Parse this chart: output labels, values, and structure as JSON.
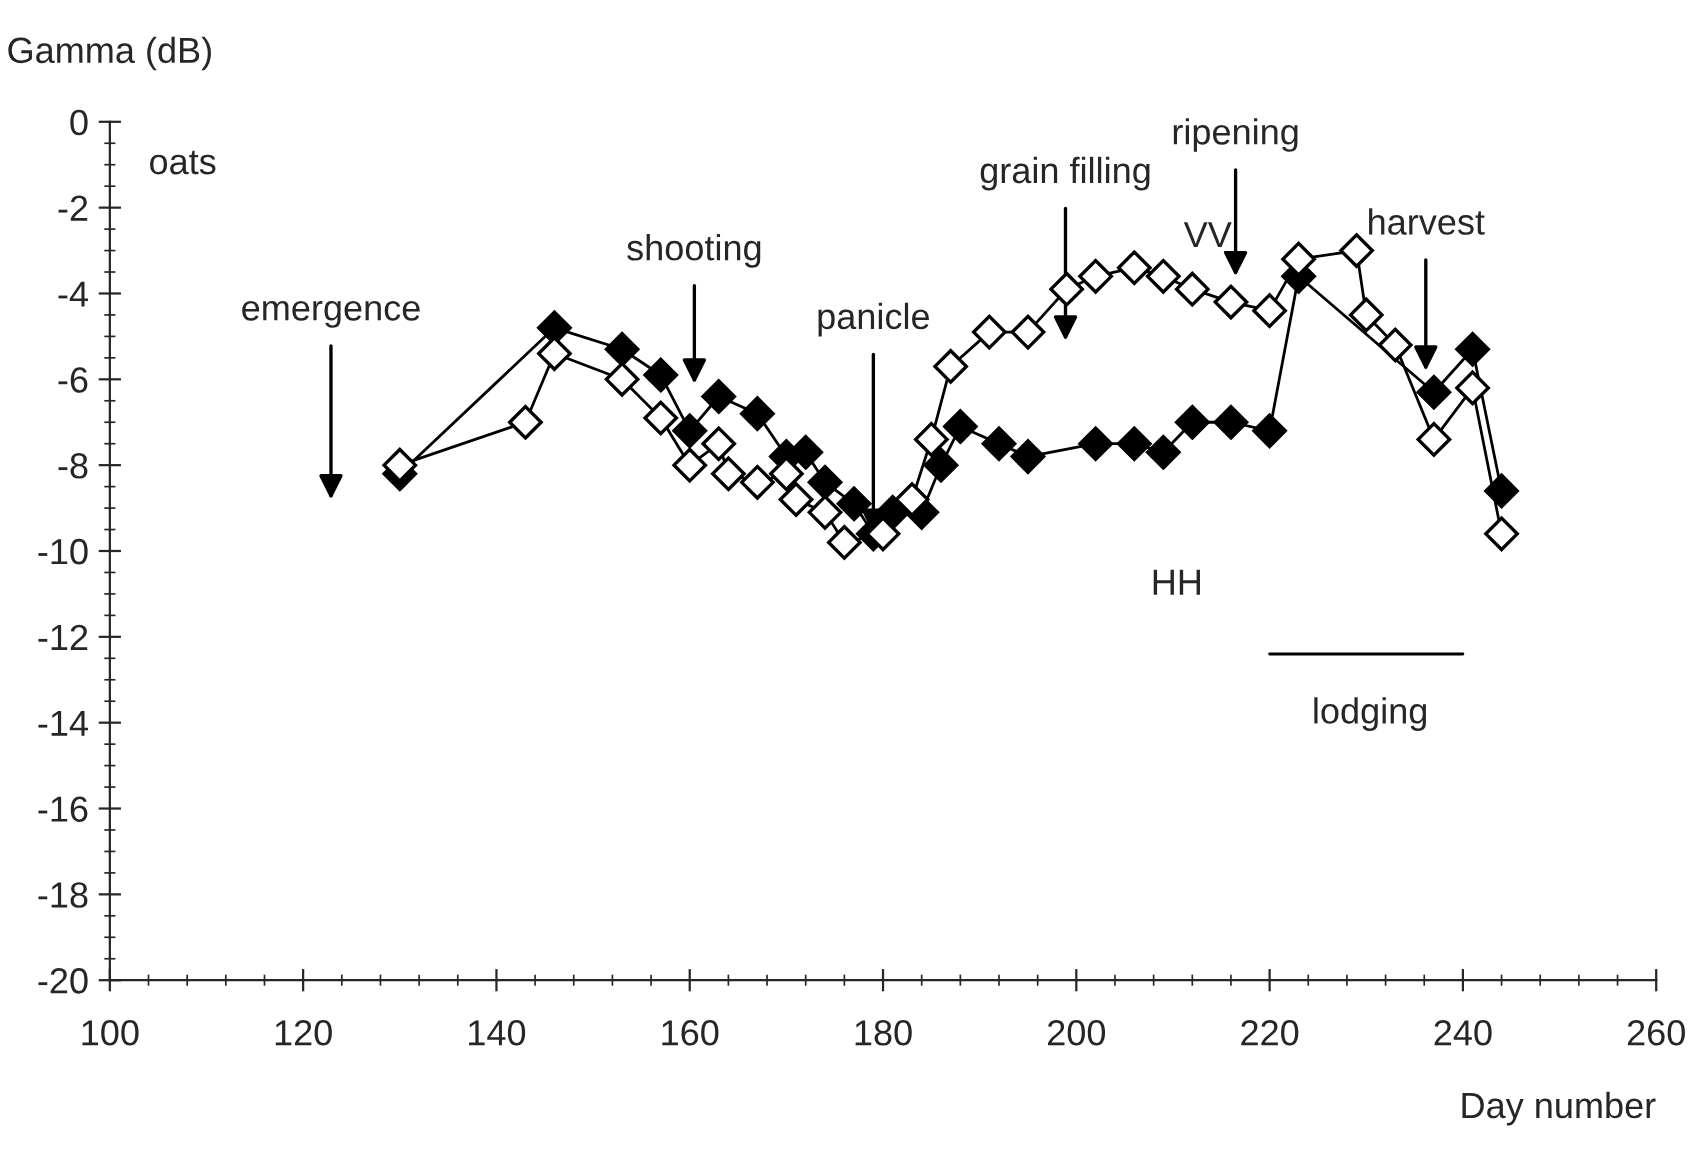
{
  "chart_data": {
    "type": "line",
    "ylabel": "Gamma (dB)",
    "xlabel": "Day number",
    "xlim": [
      100,
      260
    ],
    "xticks": [
      100,
      120,
      140,
      160,
      180,
      200,
      220,
      240,
      260
    ],
    "ylim": [
      -20,
      0
    ],
    "yticks": [
      {
        "value": 0,
        "label": "0"
      },
      {
        "value": -2,
        "label": "-2"
      },
      {
        "value": -4,
        "label": "-4"
      },
      {
        "value": -6,
        "label": "-6"
      },
      {
        "value": -8,
        "label": "-8"
      },
      {
        "value": -10,
        "label": "-10"
      },
      {
        "value": -12,
        "label": "-12"
      },
      {
        "value": -14,
        "label": "-14"
      },
      {
        "value": -16,
        "label": "-16"
      },
      {
        "value": -18,
        "label": "-18"
      },
      {
        "value": -20,
        "label": "-20"
      }
    ],
    "grid": false,
    "legend": false,
    "marker": "diamond",
    "line_style": "solid",
    "series": [
      {
        "name": "HH",
        "color": "#000000",
        "x": [
          130,
          146,
          153,
          157,
          160,
          163,
          167,
          170,
          172,
          174,
          177,
          179,
          181,
          184,
          186,
          188,
          192,
          195,
          202,
          206,
          209,
          212,
          216,
          220,
          223,
          237,
          241,
          244
        ],
        "values": [
          -8.2,
          -4.8,
          -5.3,
          -5.9,
          -7.2,
          -6.4,
          -6.8,
          -7.8,
          -7.7,
          -8.4,
          -8.9,
          -9.6,
          -9.1,
          -9.1,
          -8.0,
          -7.1,
          -7.5,
          -7.8,
          -7.5,
          -7.5,
          -7.7,
          -7.0,
          -7.0,
          -7.2,
          -3.6,
          -6.3,
          -5.3,
          -8.6
        ]
      },
      {
        "name": "VV",
        "color": "#ffffff",
        "x": [
          130,
          143,
          146,
          153,
          157,
          160,
          163,
          164,
          167,
          170,
          171,
          174,
          176,
          180,
          183,
          185,
          187,
          191,
          195,
          199,
          202,
          206,
          209,
          212,
          216,
          220,
          223,
          229,
          230,
          233,
          237,
          241,
          244
        ],
        "values": [
          -8.0,
          -7.0,
          -5.4,
          -6.0,
          -6.9,
          -8.0,
          -7.5,
          -8.2,
          -8.4,
          -8.2,
          -8.8,
          -9.1,
          -9.8,
          -9.6,
          -8.8,
          -7.4,
          -5.7,
          -4.9,
          -4.9,
          -3.9,
          -3.6,
          -3.4,
          -3.6,
          -3.9,
          -4.2,
          -4.4,
          -3.2,
          -3.0,
          -4.5,
          -5.2,
          -7.4,
          -6.2,
          -9.6
        ]
      },
      {
        "name": "lodging",
        "type": "line",
        "color": "#000000",
        "marker": "none",
        "x": [
          220,
          240
        ],
        "values": [
          -12.4,
          -12.4
        ]
      }
    ],
    "annotations": [
      "oats",
      "emergence",
      "shooting",
      {
        "text": "panicle",
        "x": 179,
        "y": -9.6
      },
      "grain filling",
      "ripening",
      "harvest"
    ]
  }
}
